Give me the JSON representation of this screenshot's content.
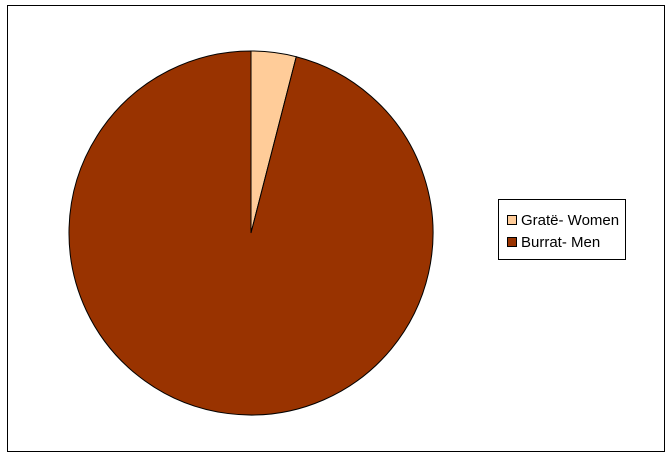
{
  "chart_data": {
    "type": "pie",
    "title": "",
    "start_angle_deg": 0,
    "direction": "clockwise",
    "slices": [
      {
        "label": "Gratë- Women",
        "value": 4,
        "color": "#FFCC99"
      },
      {
        "label": "Burrat- Men",
        "value": 96,
        "color": "#993300"
      }
    ],
    "legend": {
      "position": "right"
    }
  }
}
